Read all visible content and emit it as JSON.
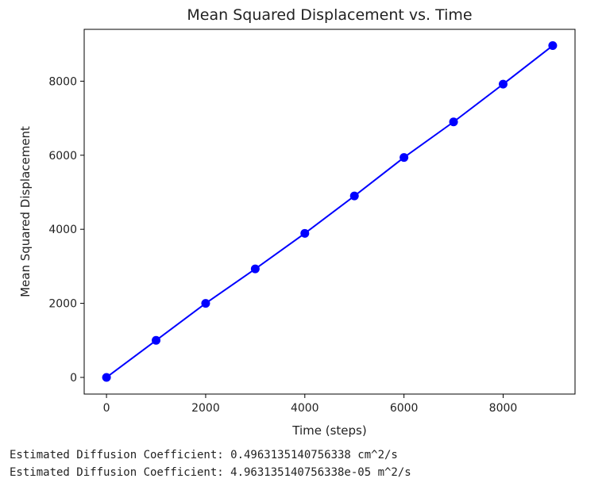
{
  "chart_data": {
    "type": "line",
    "title": "Mean Squared Displacement vs. Time",
    "xlabel": "Time (steps)",
    "ylabel": "Mean Squared Displacement",
    "x": [
      0,
      1000,
      2000,
      3000,
      4000,
      5000,
      6000,
      7000,
      8000,
      9000
    ],
    "series": [
      {
        "values": [
          0,
          1000,
          2000,
          2930,
          3890,
          4900,
          5940,
          6900,
          7920,
          8960
        ],
        "color": "#0000ff",
        "marker": "circle"
      }
    ],
    "xlim": [
      -450,
      9450
    ],
    "ylim": [
      -450,
      9400
    ],
    "xticks": [
      0,
      2000,
      4000,
      6000,
      8000
    ],
    "yticks": [
      0,
      2000,
      4000,
      6000,
      8000
    ],
    "grid": false
  },
  "output_lines": [
    "Estimated Diffusion Coefficient: 0.4963135140756338 cm^2/s",
    "Estimated Diffusion Coefficient: 4.963135140756338e-05 m^2/s"
  ]
}
